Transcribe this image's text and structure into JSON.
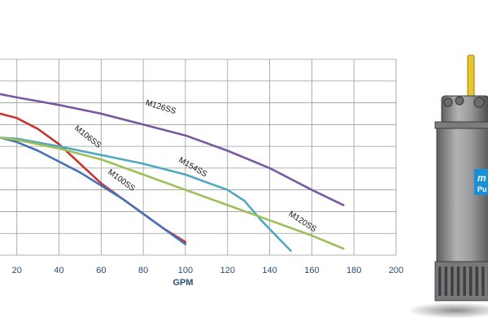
{
  "chart_data": {
    "type": "line",
    "xlabel": "GPM",
    "ylabel": "",
    "xlim": [
      12,
      200
    ],
    "ylim": [
      0,
      9
    ],
    "xticks": [
      20,
      40,
      60,
      80,
      100,
      120,
      140,
      160,
      180,
      200
    ],
    "grid": true,
    "series": [
      {
        "name": "M126SS",
        "color": "#7b56a3",
        "points": [
          [
            12,
            7.4
          ],
          [
            20,
            7.25
          ],
          [
            40,
            6.9
          ],
          [
            60,
            6.5
          ],
          [
            80,
            6.0
          ],
          [
            100,
            5.5
          ],
          [
            120,
            4.8
          ],
          [
            140,
            4.0
          ],
          [
            160,
            3.0
          ],
          [
            175,
            2.3
          ]
        ]
      },
      {
        "name": "M106SS",
        "color": "#c9352f",
        "points": [
          [
            12,
            6.5
          ],
          [
            20,
            6.3
          ],
          [
            30,
            5.8
          ],
          [
            40,
            5.1
          ],
          [
            50,
            4.2
          ],
          [
            60,
            3.3
          ],
          [
            70,
            2.6
          ],
          [
            80,
            1.9
          ],
          [
            90,
            1.2
          ],
          [
            100,
            0.6
          ]
        ]
      },
      {
        "name": "M100SS",
        "color": "#4472b8",
        "points": [
          [
            12,
            5.4
          ],
          [
            20,
            5.2
          ],
          [
            30,
            4.8
          ],
          [
            40,
            4.3
          ],
          [
            50,
            3.8
          ],
          [
            60,
            3.2
          ],
          [
            70,
            2.6
          ],
          [
            80,
            1.9
          ],
          [
            90,
            1.2
          ],
          [
            100,
            0.5
          ]
        ]
      },
      {
        "name": "M154SS",
        "color": "#4fa8c2",
        "points": [
          [
            12,
            5.4
          ],
          [
            20,
            5.35
          ],
          [
            40,
            5.0
          ],
          [
            60,
            4.6
          ],
          [
            80,
            4.2
          ],
          [
            100,
            3.7
          ],
          [
            120,
            3.0
          ],
          [
            128,
            2.5
          ],
          [
            136,
            1.6
          ],
          [
            144,
            0.8
          ],
          [
            150,
            0.2
          ]
        ]
      },
      {
        "name": "M120SS",
        "color": "#9cbf58",
        "points": [
          [
            12,
            5.4
          ],
          [
            20,
            5.3
          ],
          [
            40,
            4.9
          ],
          [
            60,
            4.4
          ],
          [
            80,
            3.7
          ],
          [
            100,
            3.0
          ],
          [
            120,
            2.3
          ],
          [
            140,
            1.6
          ],
          [
            160,
            0.9
          ],
          [
            175,
            0.3
          ]
        ]
      }
    ],
    "labels": [
      {
        "text": "M126SS",
        "x": 88,
        "y": 6.7,
        "angle": 17
      },
      {
        "text": "M106SS",
        "x": 53,
        "y": 5.35,
        "angle": 38
      },
      {
        "text": "M154SS",
        "x": 103,
        "y": 3.95,
        "angle": 30
      },
      {
        "text": "M100SS",
        "x": 69,
        "y": 3.35,
        "angle": 36
      },
      {
        "text": "M120SS",
        "x": 155,
        "y": 1.45,
        "angle": 33
      }
    ]
  },
  "pump": {
    "badge_text_top": "m",
    "badge_text_bottom": "Pu",
    "body_color": "#8f9091",
    "badge_color": "#1a8fd6",
    "handle_color": "#e8c52a"
  }
}
